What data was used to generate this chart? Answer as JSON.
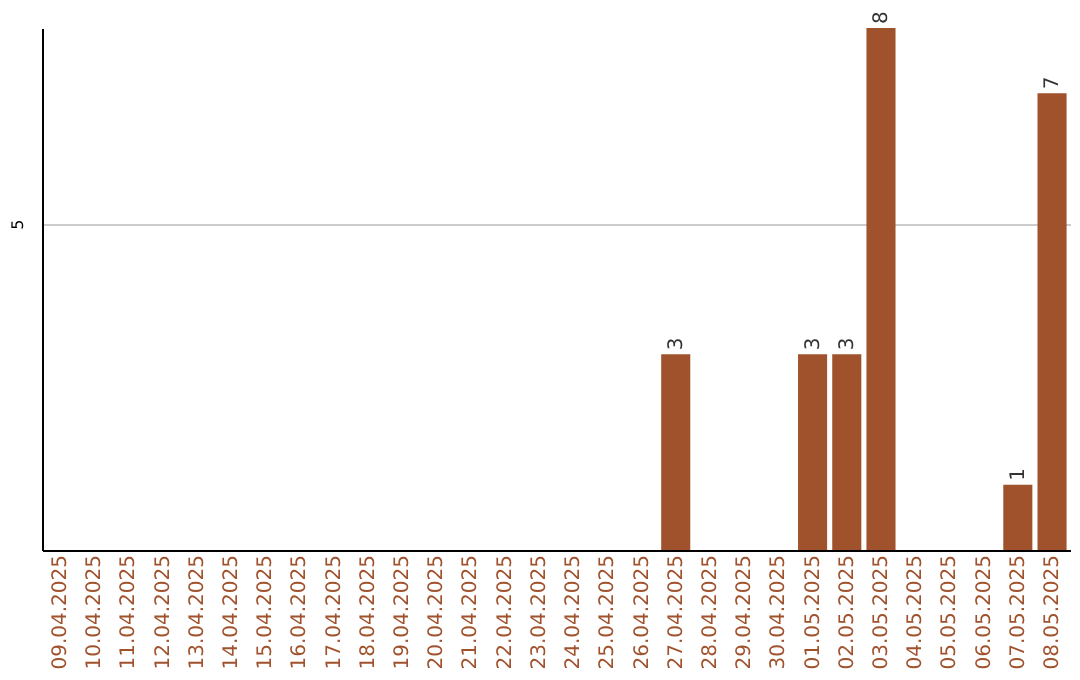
{
  "chart_data": {
    "type": "bar",
    "categories": [
      "09.04.2025",
      "10.04.2025",
      "11.04.2025",
      "12.04.2025",
      "13.04.2025",
      "14.04.2025",
      "15.04.2025",
      "16.04.2025",
      "17.04.2025",
      "18.04.2025",
      "19.04.2025",
      "20.04.2025",
      "21.04.2025",
      "22.04.2025",
      "23.04.2025",
      "24.04.2025",
      "25.04.2025",
      "26.04.2025",
      "27.04.2025",
      "28.04.2025",
      "29.04.2025",
      "30.04.2025",
      "01.05.2025",
      "02.05.2025",
      "03.05.2025",
      "04.05.2025",
      "05.05.2025",
      "06.05.2025",
      "07.05.2025",
      "08.05.2025"
    ],
    "values": [
      null,
      null,
      null,
      null,
      null,
      null,
      null,
      null,
      null,
      null,
      null,
      null,
      null,
      null,
      null,
      null,
      null,
      null,
      3,
      null,
      null,
      null,
      3,
      3,
      8,
      null,
      null,
      null,
      1,
      7
    ],
    "color": "#a0522d",
    "ylim": [
      0,
      8
    ],
    "yticks": [
      5
    ],
    "grid": "y",
    "data_labels": true
  }
}
